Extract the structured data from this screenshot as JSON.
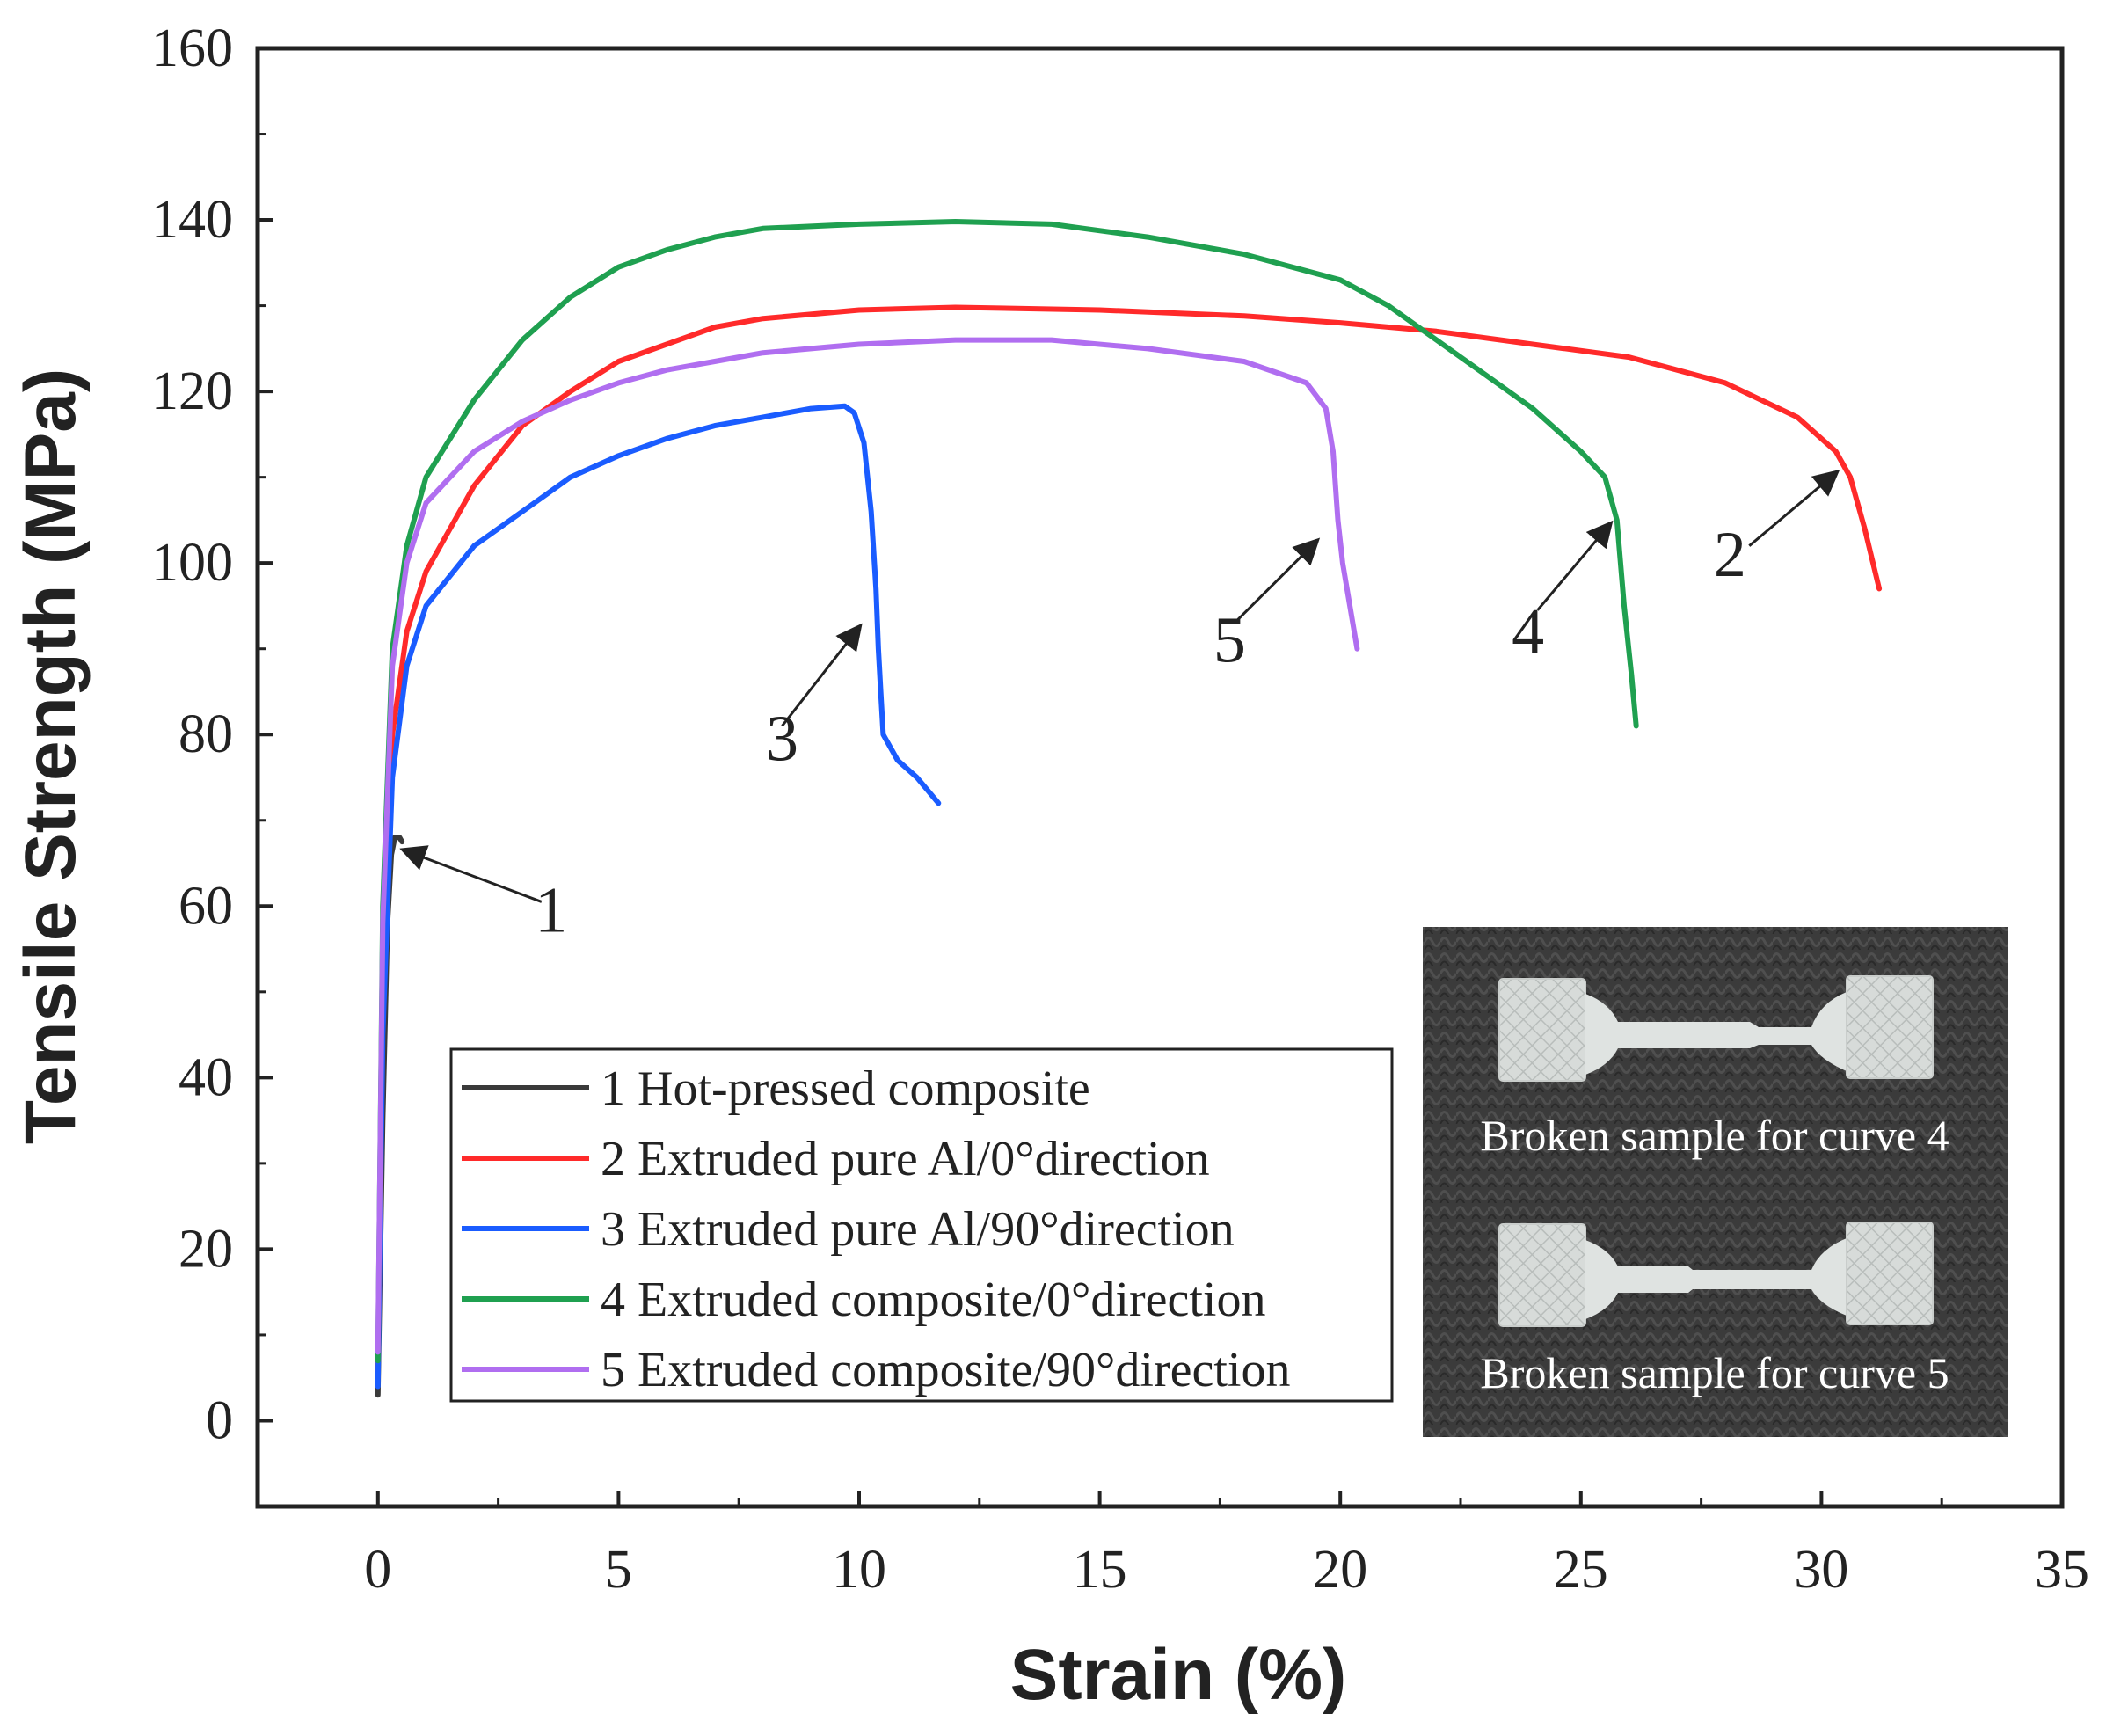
{
  "chart_data": {
    "type": "line",
    "xlabel": "Strain (%)",
    "ylabel": "Tensile Strength (MPa)",
    "xlim": [
      -2.5,
      35
    ],
    "ylim": [
      -10,
      160
    ],
    "xticks": [
      0,
      5,
      10,
      15,
      20,
      25,
      30,
      35
    ],
    "yticks": [
      0,
      20,
      40,
      60,
      80,
      100,
      120,
      140,
      160
    ],
    "legend_placement": "bottom-center",
    "series": [
      {
        "name": "1 Hot-pressed composite",
        "label": "1",
        "color": "#3a3a3a",
        "points": [
          [
            0,
            3
          ],
          [
            0.1,
            35
          ],
          [
            0.2,
            58
          ],
          [
            0.28,
            66
          ],
          [
            0.35,
            68
          ],
          [
            0.45,
            68
          ],
          [
            0.5,
            67.5
          ]
        ]
      },
      {
        "name": "2 Extruded pure Al/0°direction",
        "label": "2",
        "color": "#ff2a2a",
        "points": [
          [
            0,
            5
          ],
          [
            0.1,
            48
          ],
          [
            0.3,
            80
          ],
          [
            0.6,
            92
          ],
          [
            1,
            99
          ],
          [
            2,
            109
          ],
          [
            3,
            116
          ],
          [
            4,
            120
          ],
          [
            5,
            123.5
          ],
          [
            6,
            125.5
          ],
          [
            7,
            127.5
          ],
          [
            8,
            128.5
          ],
          [
            10,
            129.5
          ],
          [
            12,
            129.8
          ],
          [
            15,
            129.5
          ],
          [
            18,
            128.8
          ],
          [
            20,
            128
          ],
          [
            22,
            127
          ],
          [
            24,
            125.5
          ],
          [
            26,
            124
          ],
          [
            28,
            121
          ],
          [
            29.5,
            117
          ],
          [
            30.3,
            113
          ],
          [
            30.6,
            110
          ],
          [
            30.9,
            104
          ],
          [
            31.2,
            97
          ]
        ]
      },
      {
        "name": "3 Extruded pure Al/90°direction",
        "label": "3",
        "color": "#1a5cff",
        "points": [
          [
            0,
            4
          ],
          [
            0.1,
            45
          ],
          [
            0.3,
            75
          ],
          [
            0.6,
            88
          ],
          [
            1,
            95
          ],
          [
            2,
            102
          ],
          [
            3,
            106
          ],
          [
            4,
            110
          ],
          [
            5,
            112.5
          ],
          [
            6,
            114.5
          ],
          [
            7,
            116
          ],
          [
            8,
            117
          ],
          [
            9,
            118
          ],
          [
            9.7,
            118.3
          ],
          [
            9.9,
            117.5
          ],
          [
            10.1,
            114
          ],
          [
            10.25,
            106
          ],
          [
            10.35,
            97
          ],
          [
            10.4,
            90
          ],
          [
            10.45,
            85
          ],
          [
            10.5,
            80
          ],
          [
            10.8,
            77
          ],
          [
            11.2,
            75
          ],
          [
            11.65,
            72
          ]
        ]
      },
      {
        "name": "4 Extruded composite/0°direction",
        "label": "4",
        "color": "#1fa050",
        "points": [
          [
            0,
            7
          ],
          [
            0.1,
            60
          ],
          [
            0.3,
            90
          ],
          [
            0.6,
            102
          ],
          [
            1,
            110
          ],
          [
            2,
            119
          ],
          [
            3,
            126
          ],
          [
            4,
            131
          ],
          [
            5,
            134.5
          ],
          [
            6,
            136.5
          ],
          [
            7,
            138
          ],
          [
            8,
            139
          ],
          [
            10,
            139.5
          ],
          [
            12,
            139.8
          ],
          [
            14,
            139.5
          ],
          [
            16,
            138
          ],
          [
            18,
            136
          ],
          [
            20,
            133
          ],
          [
            21,
            130
          ],
          [
            22,
            126
          ],
          [
            23,
            122
          ],
          [
            24,
            118
          ],
          [
            25,
            113
          ],
          [
            25.5,
            110
          ],
          [
            25.75,
            105
          ],
          [
            25.9,
            95
          ],
          [
            26.05,
            87
          ],
          [
            26.15,
            81
          ]
        ]
      },
      {
        "name": "5 Extruded composite/90°direction",
        "label": "5",
        "color": "#b06ef0",
        "points": [
          [
            0,
            8
          ],
          [
            0.1,
            58
          ],
          [
            0.3,
            88
          ],
          [
            0.6,
            100
          ],
          [
            1,
            107
          ],
          [
            2,
            113
          ],
          [
            3,
            116.5
          ],
          [
            4,
            119
          ],
          [
            5,
            121
          ],
          [
            6,
            122.5
          ],
          [
            7,
            123.5
          ],
          [
            8,
            124.5
          ],
          [
            10,
            125.5
          ],
          [
            12,
            126
          ],
          [
            14,
            126
          ],
          [
            16,
            125
          ],
          [
            18,
            123.5
          ],
          [
            19.3,
            121
          ],
          [
            19.7,
            118
          ],
          [
            19.85,
            113
          ],
          [
            19.95,
            105
          ],
          [
            20.05,
            100
          ],
          [
            20.2,
            95
          ],
          [
            20.35,
            90
          ]
        ]
      }
    ],
    "annotations": [
      {
        "text": "1",
        "arrow_from": [
          3.4,
          60.5
        ],
        "arrow_to": [
          0.55,
          66.5
        ],
        "text_at": [
          3.6,
          57
        ]
      },
      {
        "text": "2",
        "arrow_from": [
          28.5,
          102
        ],
        "arrow_to": [
          30.3,
          110.5
        ],
        "text_at": [
          28.1,
          98.5
        ]
      },
      {
        "text": "3",
        "arrow_from": [
          8.4,
          81
        ],
        "arrow_to": [
          10,
          92.5
        ],
        "text_at": [
          8.4,
          77
        ]
      },
      {
        "text": "4",
        "arrow_from": [
          24.1,
          94.5
        ],
        "arrow_to": [
          25.6,
          104.5
        ],
        "text_at": [
          23.9,
          89.5
        ]
      },
      {
        "text": "5",
        "arrow_from": [
          17.8,
          93
        ],
        "arrow_to": [
          19.5,
          102.5
        ],
        "text_at": [
          17.7,
          88.5
        ]
      }
    ]
  },
  "inset": {
    "captions": [
      "Broken sample for curve 4",
      "Broken sample for curve 5"
    ],
    "background_color": "#3b3b3b"
  }
}
